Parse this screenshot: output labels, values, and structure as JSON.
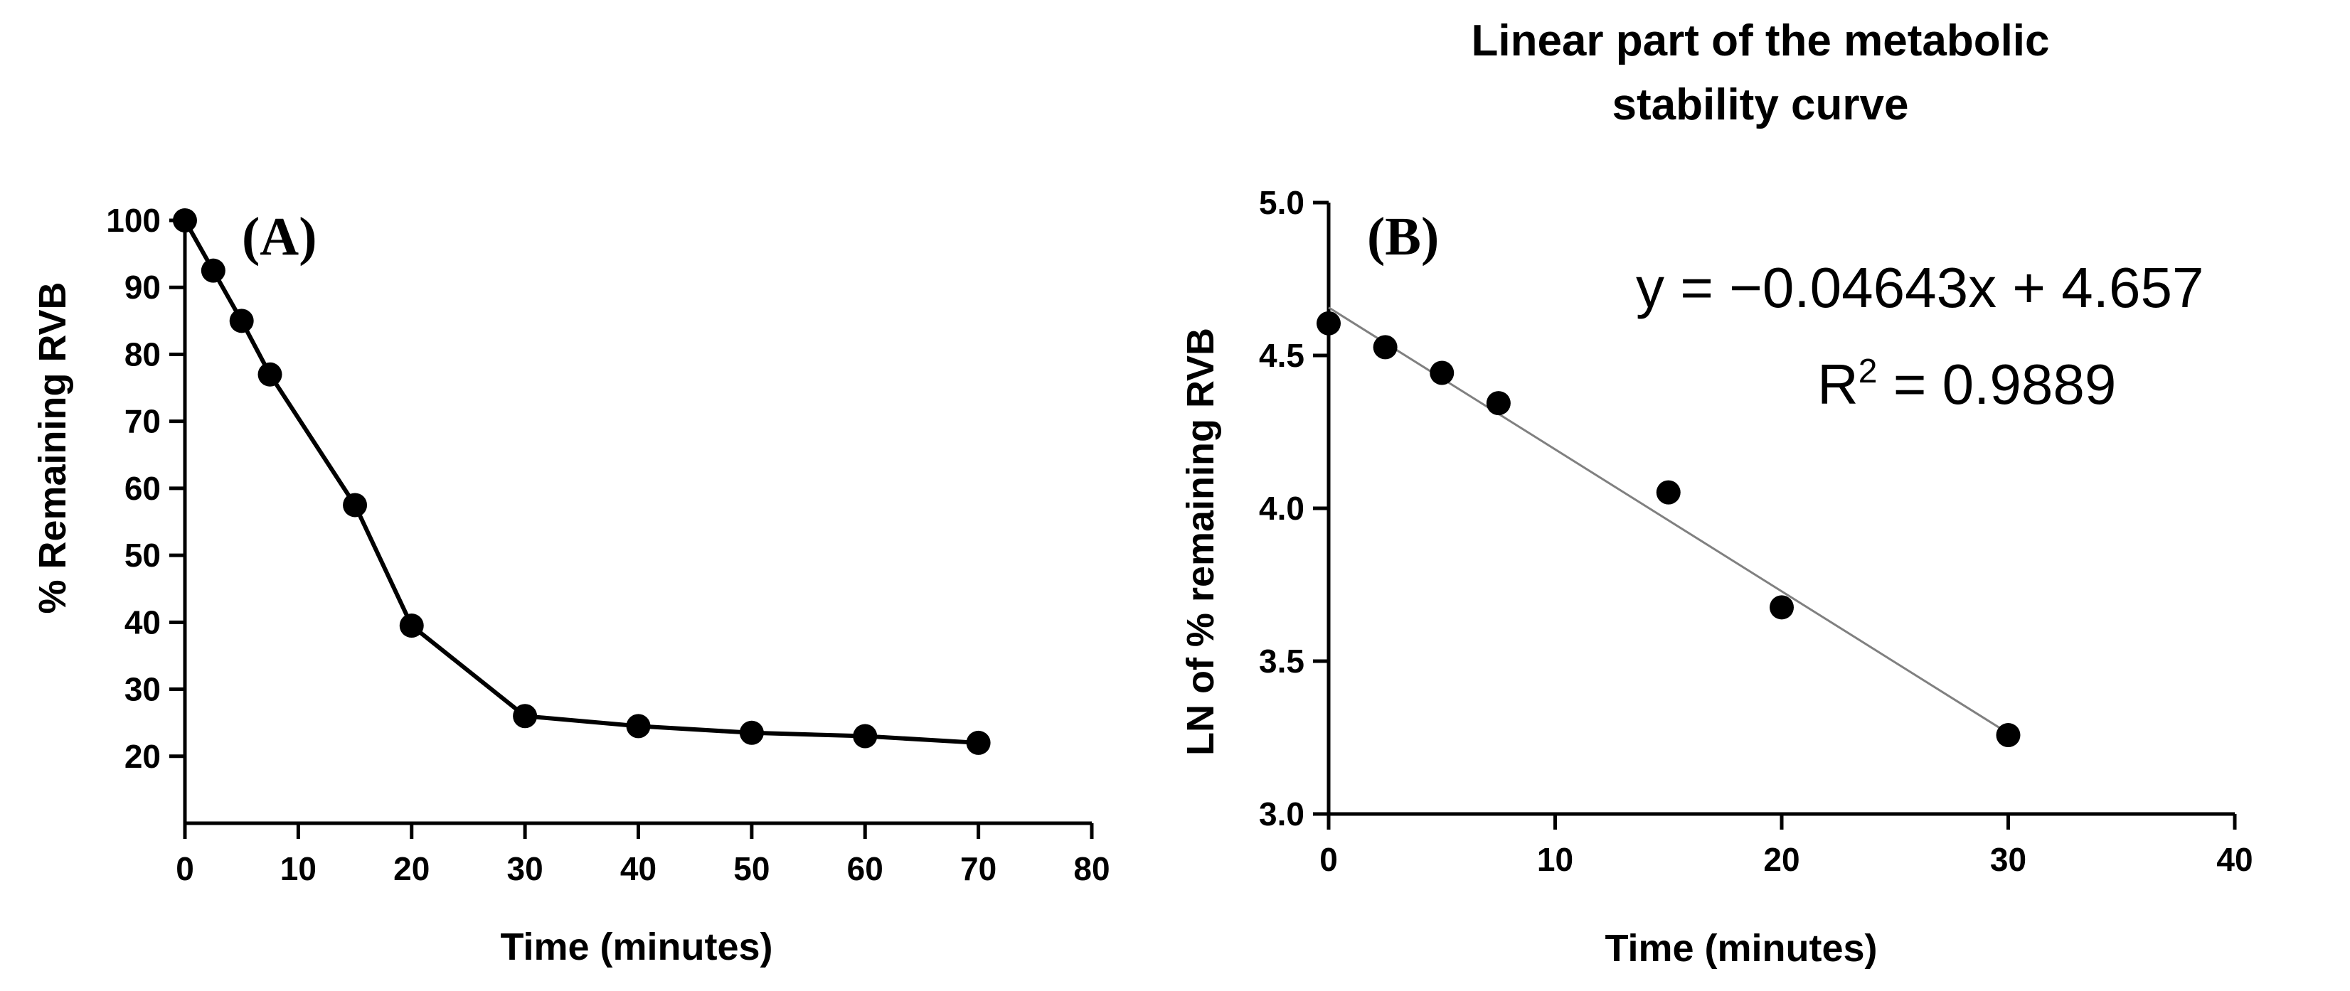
{
  "title": "Linear part of the metabolic stability curve",
  "title_lines": [
    "Linear part of the metabolic",
    "stability curve"
  ],
  "chart_data": [
    {
      "panel": "(A)",
      "type": "line",
      "xlabel": "Time (minutes)",
      "ylabel": "% Remaining RVB",
      "xlim": [
        0,
        80
      ],
      "ylim": [
        10,
        100
      ],
      "xticks": [
        0,
        10,
        20,
        30,
        40,
        50,
        60,
        70,
        80
      ],
      "yticks": [
        20,
        30,
        40,
        50,
        60,
        70,
        80,
        90,
        100
      ],
      "series": [
        {
          "name": "% Remaining RVB",
          "x": [
            0,
            2.5,
            5,
            7.5,
            15,
            20,
            30,
            40,
            50,
            60,
            70
          ],
          "y": [
            100,
            92.5,
            85,
            77,
            57.5,
            39.5,
            26,
            24.5,
            23.5,
            23,
            22
          ]
        }
      ]
    },
    {
      "panel": "(B)",
      "type": "scatter",
      "xlabel": "Time (minutes)",
      "ylabel": "LN of % remaining RVB",
      "xlim": [
        0,
        40
      ],
      "ylim": [
        3.0,
        5.0
      ],
      "xticks": [
        0,
        10,
        20,
        30,
        40
      ],
      "yticks": [
        3.0,
        3.5,
        4.0,
        4.5,
        5.0
      ],
      "series": [
        {
          "name": "LN of % remaining RVB",
          "x": [
            0,
            2.5,
            5,
            7.5,
            15,
            20,
            30
          ],
          "y": [
            4.605,
            4.527,
            4.443,
            4.344,
            4.052,
            3.676,
            3.258
          ]
        }
      ],
      "trendline": {
        "slope": -0.04643,
        "intercept": 4.657,
        "x_range": [
          0,
          30
        ]
      },
      "annotations": {
        "equation": "y = −0.04643x + 4.657",
        "r2_prefix": "R",
        "r2_sup": "2",
        "r2_suffix": " = 0.9889"
      }
    }
  ]
}
